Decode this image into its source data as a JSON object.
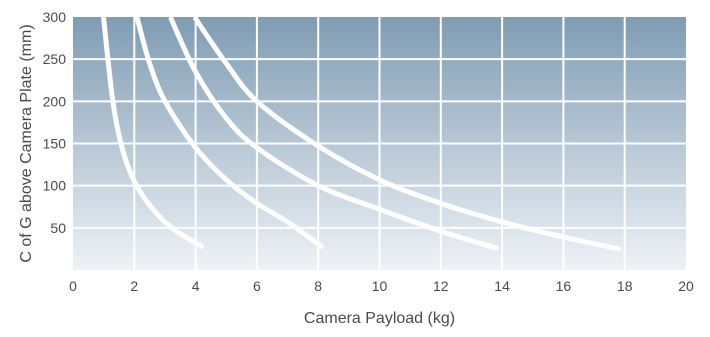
{
  "chart_data": {
    "type": "line",
    "title": "",
    "xlabel": "Camera Payload (kg)",
    "ylabel": "C of G above Camera Plate (mm)",
    "xlim": [
      0,
      20
    ],
    "ylim": [
      0,
      300
    ],
    "x_ticks": [
      "0",
      "2",
      "4",
      "6",
      "8",
      "10",
      "12",
      "14",
      "16",
      "18",
      "20"
    ],
    "y_ticks": [
      "50",
      "100",
      "150",
      "200",
      "250",
      "300"
    ],
    "grid": true,
    "legend": "none",
    "colors": {
      "plot_bg_top": "#7f9cb3",
      "plot_bg_bottom": "#eef2f6",
      "grid": "#ffffff",
      "curve": "#ffffff",
      "text": "#4a4a4a"
    },
    "series": [
      {
        "x": [
          1.0,
          1.3,
          1.6,
          2.0,
          2.5,
          3.0,
          3.5,
          4.2
        ],
        "y": [
          298,
          200,
          145,
          105,
          77,
          57,
          43,
          28
        ]
      },
      {
        "x": [
          2.1,
          2.5,
          3.0,
          4.0,
          5.0,
          6.0,
          7.0,
          8.1
        ],
        "y": [
          298,
          245,
          200,
          145,
          107,
          79,
          57,
          28
        ]
      },
      {
        "x": [
          3.2,
          4.0,
          5.0,
          6.0,
          8.0,
          10.0,
          12.0,
          13.8
        ],
        "y": [
          298,
          235,
          180,
          145,
          100,
          72,
          46,
          26
        ]
      },
      {
        "x": [
          4.0,
          5.0,
          6.0,
          8.0,
          10.0,
          12.0,
          14.0,
          16.0,
          17.8
        ],
        "y": [
          298,
          245,
          200,
          147,
          107,
          79,
          57,
          39,
          25
        ]
      }
    ]
  }
}
